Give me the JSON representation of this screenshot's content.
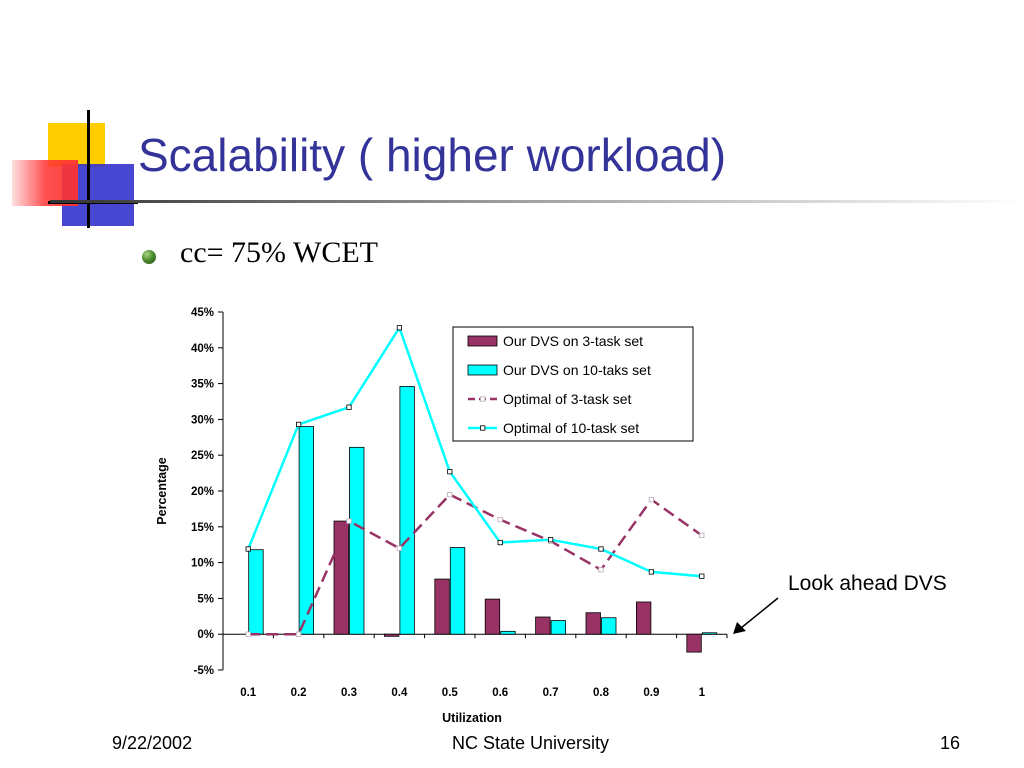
{
  "slide": {
    "title": "Scalability ( higher workload)",
    "bullet": "cc= 75% WCET",
    "annotation": "Look ahead DVS",
    "footer": {
      "date": "9/22/2002",
      "center": "NC State University",
      "page": "16"
    },
    "colors": {
      "title": "#333399",
      "logo_yellow": "#ffcc00",
      "logo_red": "#ff3333",
      "logo_blue": "#3333cc"
    }
  },
  "chart_data": {
    "type": "bar",
    "xlabel": "Utilization",
    "ylabel": "Percentage",
    "categories": [
      "0.1",
      "0.2",
      "0.3",
      "0.4",
      "0.5",
      "0.6",
      "0.7",
      "0.8",
      "0.9",
      "1"
    ],
    "ylim": [
      -5,
      45
    ],
    "yticks": [
      -5,
      0,
      5,
      10,
      15,
      20,
      25,
      30,
      35,
      40,
      45
    ],
    "ytick_labels": [
      "-5%",
      "0%",
      "5%",
      "10%",
      "15%",
      "20%",
      "25%",
      "30%",
      "35%",
      "40%",
      "45%"
    ],
    "grid": false,
    "legend_position": "top-right",
    "series": [
      {
        "name": "Our DVS on 3-task set",
        "type": "bar",
        "color": "#993366",
        "values": [
          0,
          0,
          15.8,
          -0.3,
          7.7,
          4.9,
          2.4,
          3.0,
          4.5,
          -2.5
        ]
      },
      {
        "name": "Our DVS on 10-taks set",
        "type": "bar",
        "color": "#00ffff",
        "values": [
          11.8,
          29.0,
          26.1,
          34.6,
          12.1,
          0.4,
          1.9,
          2.3,
          0,
          0.2
        ]
      },
      {
        "name": "Optimal of 3-task set",
        "type": "line",
        "dash": true,
        "color": "#993366",
        "values": [
          0,
          0,
          15.8,
          12.0,
          19.5,
          16.0,
          13.0,
          9.0,
          18.8,
          13.8
        ]
      },
      {
        "name": "Optimal of 10-task set",
        "type": "line",
        "dash": false,
        "color": "#00ffff",
        "values": [
          11.9,
          29.3,
          31.7,
          42.8,
          22.7,
          12.8,
          13.2,
          11.9,
          8.7,
          8.1
        ]
      }
    ]
  }
}
